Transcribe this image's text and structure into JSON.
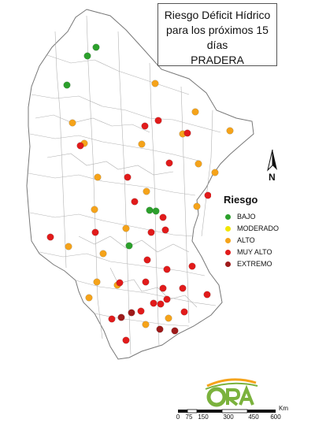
{
  "title": {
    "line1": "Riesgo Déficit Hídrico",
    "line2": "para los próximos 15 días",
    "line3": "PRADERA"
  },
  "north": {
    "letter": "N"
  },
  "legend": {
    "title": "Riesgo",
    "items": [
      {
        "label": "BAJO",
        "color": "#2ca02c"
      },
      {
        "label": "MODERADO",
        "color": "#f2e600"
      },
      {
        "label": "ALTO",
        "color": "#f5a31a"
      },
      {
        "label": "MUY ALTO",
        "color": "#e11b1b"
      },
      {
        "label": "EXTREMO",
        "color": "#9e1a1a"
      }
    ]
  },
  "scale": {
    "unit": "Km",
    "ticks": [
      "0",
      "75",
      "150",
      "300",
      "450",
      "600"
    ]
  },
  "logo": {
    "text": "ORA"
  },
  "colors": {
    "base_fill": "#ffffff",
    "borders": "#9a9a9a",
    "outline": "#555555",
    "logo_green": "#7bb23d",
    "logo_orange": "#f5a31a"
  }
}
